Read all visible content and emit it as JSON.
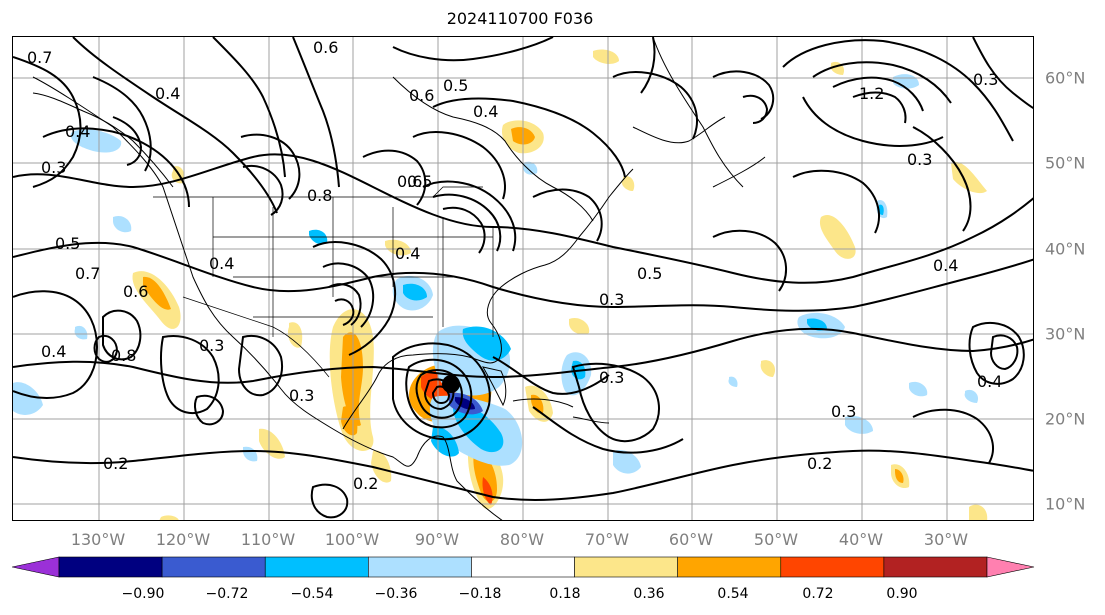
{
  "title": "2024110700 F036",
  "lon_labels": [
    "130°W",
    "120°W",
    "110°W",
    "100°W",
    "90°W",
    "80°W",
    "70°W",
    "60°W",
    "50°W",
    "40°W",
    "30°W"
  ],
  "lat_labels": [
    "60°N",
    "50°N",
    "40°N",
    "30°N",
    "20°N",
    "10°N"
  ],
  "contour_labels": [
    "0.6",
    "0.4",
    "0.7",
    "0.4",
    "0.5",
    "0.6",
    "0.5",
    "0.4",
    "0.3",
    "0.5",
    "0.4",
    "0.7",
    "0.6",
    "0.8",
    "0.3",
    "0.4",
    "0.3",
    "0.3",
    "0.2",
    "0.2",
    "0.5",
    "0.3",
    "0.3",
    "0.4",
    "0.4",
    "0.2",
    "0.8",
    "0.4",
    "0.6",
    "1.2",
    "0.3",
    "0.3"
  ],
  "colorbar": {
    "ticks": [
      "−0.90",
      "−0.72",
      "−0.54",
      "−0.36",
      "−0.18",
      "0.18",
      "0.36",
      "0.54",
      "0.72",
      "0.90"
    ],
    "colors": {
      "below": "#9b30d8",
      "bins": [
        "#000080",
        "#3a5bd0",
        "#00bfff",
        "#ade0ff",
        "#ffffff",
        "#fce68a",
        "#ffa500",
        "#ff4500",
        "#b22222"
      ],
      "above": "#ff80b0"
    }
  },
  "map_style": {
    "grid_color": "#a0a0a0",
    "coast_color": "#000000",
    "contour_color": "#000000"
  }
}
